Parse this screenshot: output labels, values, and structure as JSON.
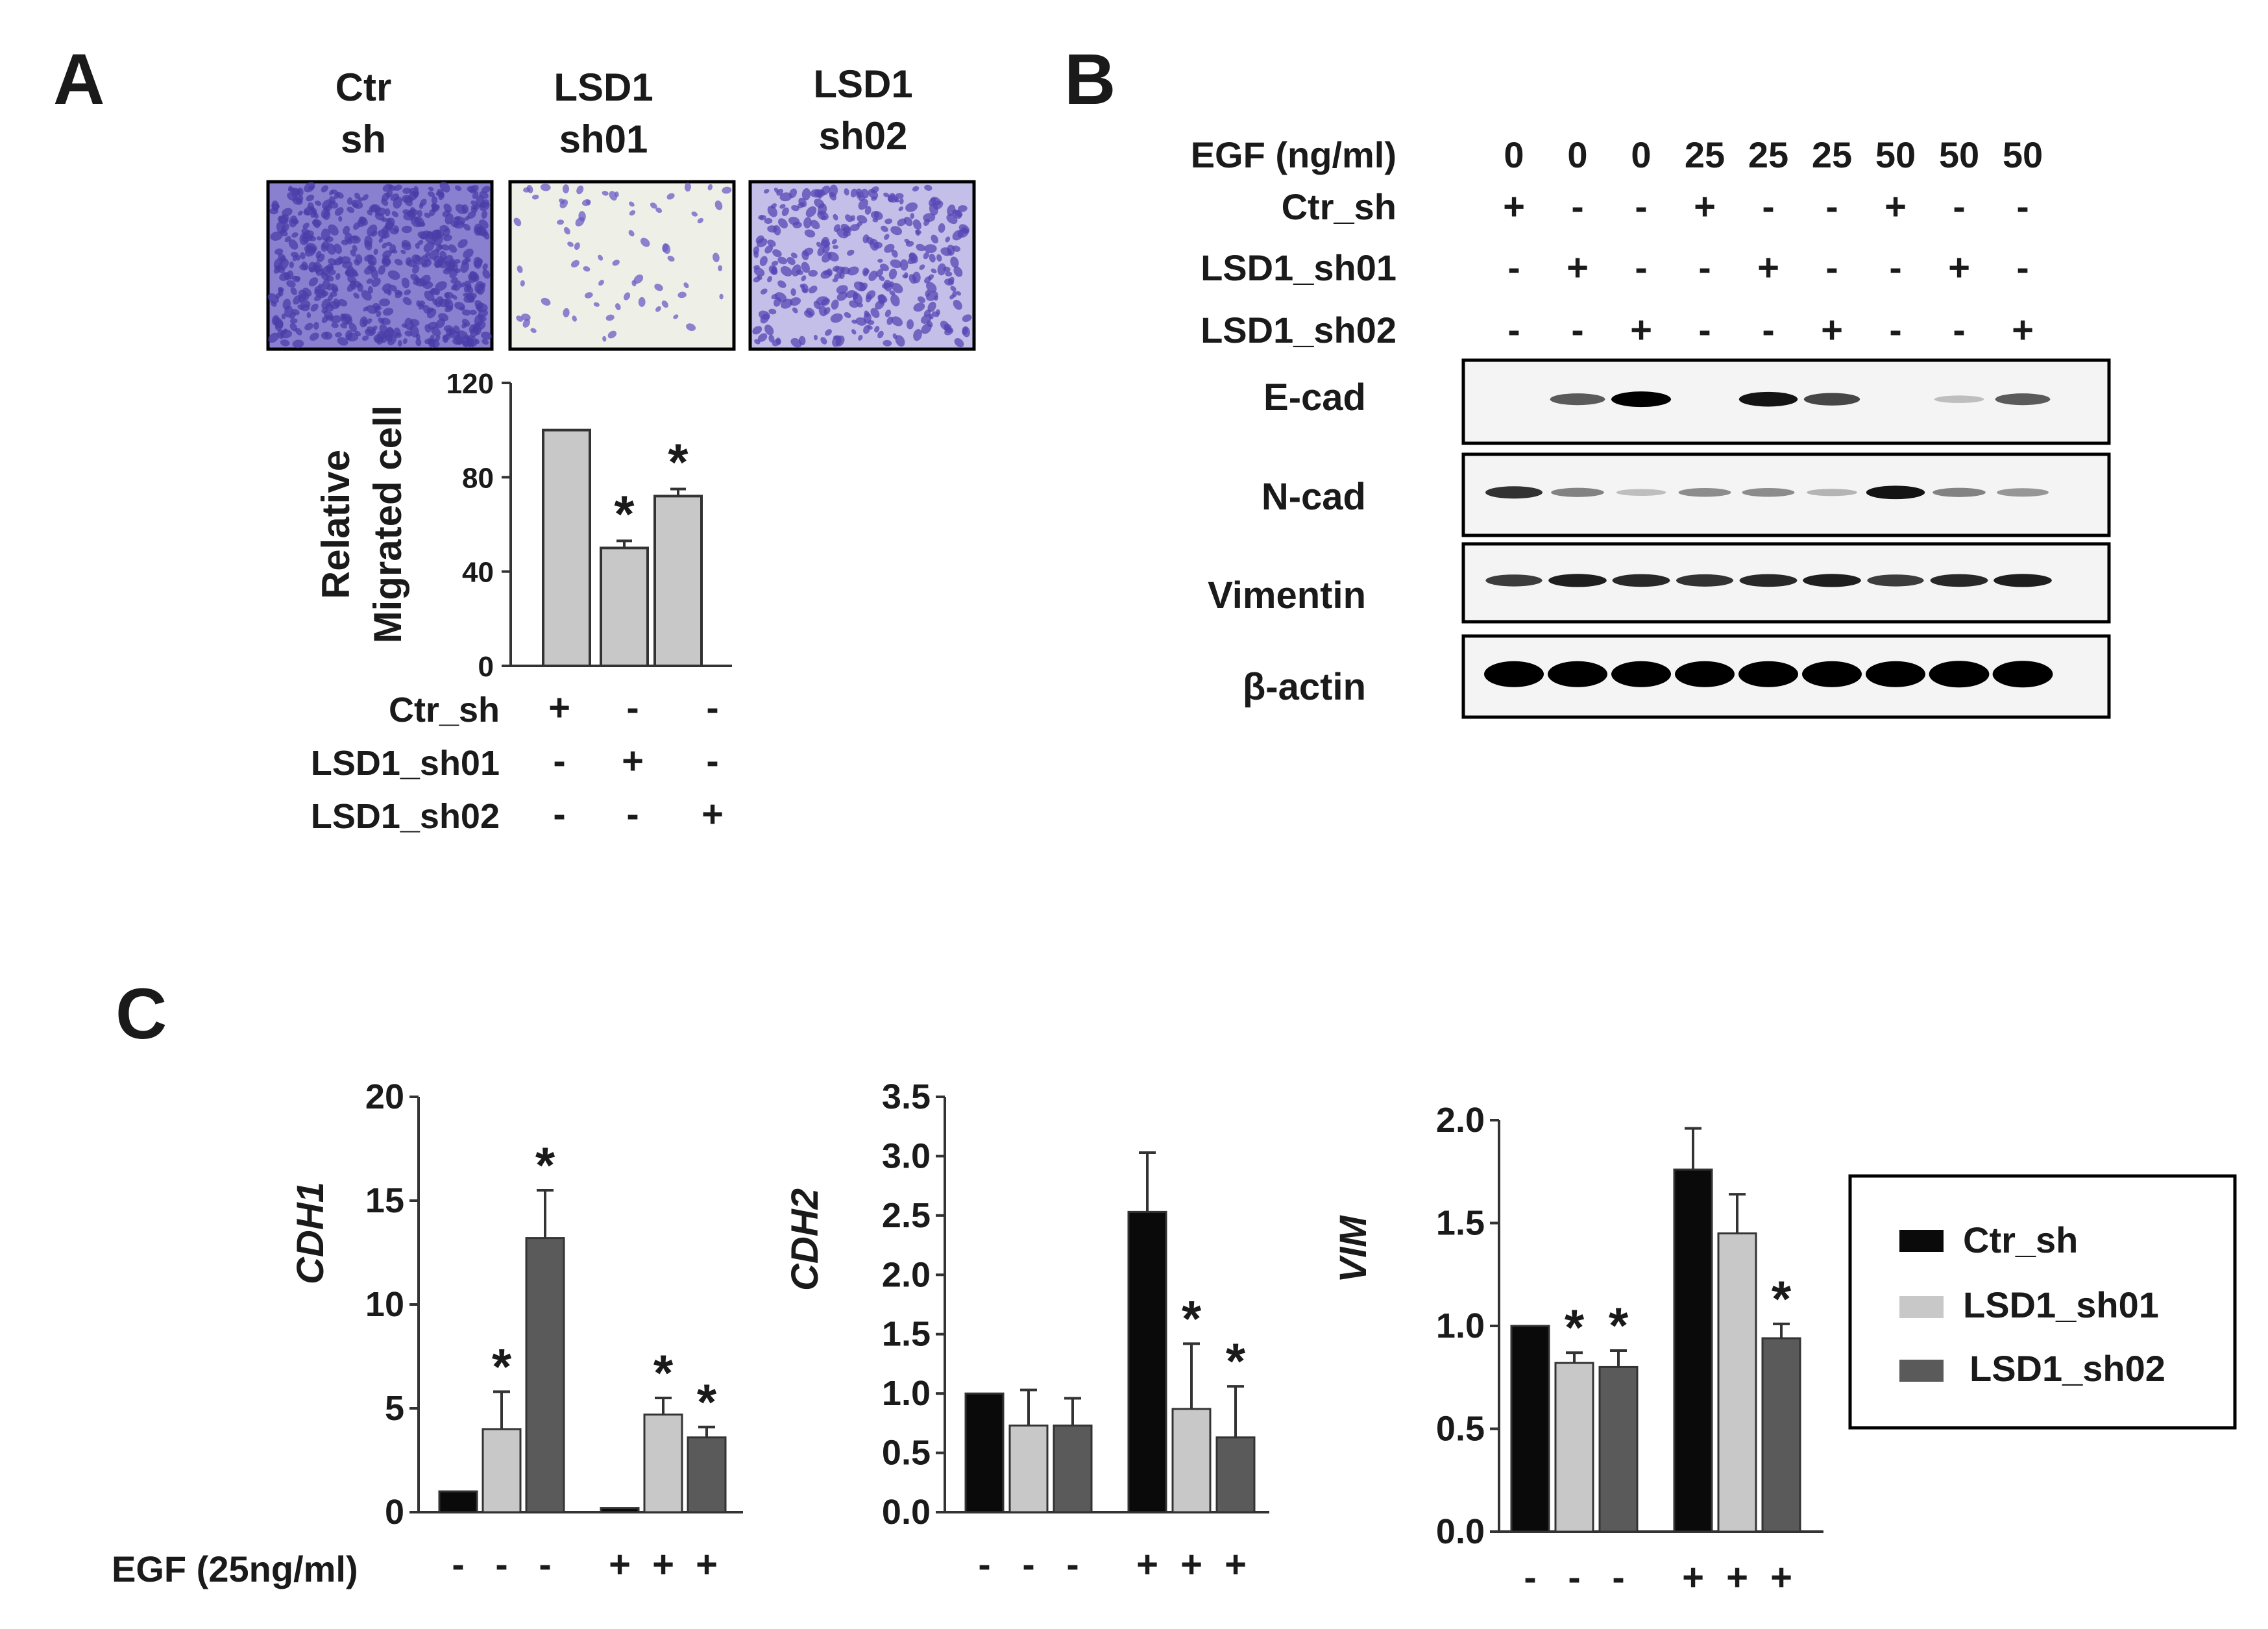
{
  "colors": {
    "black_bar": "#0a0a0a",
    "light_bar": "#c8c8c8",
    "dark_bar": "#5a5a5a",
    "crystal_violet": "#5b4fb8",
    "crystal_bg_light": "#eef0e8",
    "blot_bg": "#f4f4f4"
  },
  "panel_a": {
    "letter": "A",
    "image_titles": [
      {
        "line1": "Ctr",
        "line2": "sh"
      },
      {
        "line1": "LSD1",
        "line2": "sh01"
      },
      {
        "line1": "LSD1",
        "line2": "sh02"
      }
    ],
    "image_densities": [
      "dense",
      "sparse",
      "medium"
    ],
    "condition_rows": [
      {
        "label": "Ctr_sh",
        "marks": [
          "+",
          "-",
          "-"
        ]
      },
      {
        "label": "LSD1_sh01",
        "marks": [
          "-",
          "+",
          "-"
        ]
      },
      {
        "label": "LSD1_sh02",
        "marks": [
          "-",
          "-",
          "+"
        ]
      }
    ]
  },
  "panel_b": {
    "letter": "B",
    "egf_label": "EGF (ng/ml)",
    "egf_values": [
      "0",
      "0",
      "0",
      "25",
      "25",
      "25",
      "50",
      "50",
      "50"
    ],
    "condition_rows": [
      {
        "label": "Ctr_sh",
        "marks": [
          "+",
          "-",
          "-",
          "+",
          "-",
          "-",
          "+",
          "-",
          "-"
        ]
      },
      {
        "label": "LSD1_sh01",
        "marks": [
          "-",
          "+",
          "-",
          "-",
          "+",
          "-",
          "-",
          "+",
          "-"
        ]
      },
      {
        "label": "LSD1_sh02",
        "marks": [
          "-",
          "-",
          "+",
          "-",
          "-",
          "+",
          "-",
          "-",
          "+"
        ]
      }
    ],
    "blots": [
      {
        "label": "E-cad",
        "intensities": [
          0,
          0.55,
          1.0,
          0,
          0.9,
          0.65,
          0,
          0.05,
          0.55
        ]
      },
      {
        "label": "N-cad",
        "intensities": [
          0.75,
          0.35,
          0.05,
          0.3,
          0.3,
          0.1,
          0.9,
          0.35,
          0.25
        ]
      },
      {
        "label": "Vimentin",
        "intensities": [
          0.7,
          0.85,
          0.8,
          0.75,
          0.8,
          0.85,
          0.7,
          0.8,
          0.85
        ]
      },
      {
        "label": "β-actin",
        "intensities": [
          1,
          1,
          1,
          1,
          1,
          1,
          1,
          1.05,
          1.05
        ]
      }
    ]
  },
  "panel_c": {
    "letter": "C",
    "egf_label": "EGF (25ng/ml)",
    "egf_marks": [
      "-",
      "-",
      "-",
      "+",
      "+",
      "+"
    ],
    "legend": [
      "Ctr_sh",
      "LSD1_sh01",
      "LSD1_sh02"
    ]
  },
  "chart_data": [
    {
      "id": "panel-a-migration",
      "type": "bar",
      "ylabel": "Relative Migrated cell",
      "ylabel_lines": [
        "Relative",
        "Migrated cell"
      ],
      "ylim": [
        0,
        120
      ],
      "yticks": [
        0,
        40,
        80,
        120
      ],
      "categories": [
        "Ctr_sh",
        "LSD1_sh01",
        "LSD1_sh02"
      ],
      "values": [
        100,
        50,
        72
      ],
      "errors": [
        0,
        3,
        3
      ],
      "significance": [
        "",
        "*",
        "*"
      ]
    },
    {
      "id": "panel-c-cdh1",
      "type": "bar",
      "ylabel": "CDH1",
      "ylim": [
        0,
        20
      ],
      "yticks": [
        0,
        5,
        10,
        15,
        20
      ],
      "ytick_labels": [
        "0",
        "5",
        "10",
        "15",
        "20"
      ],
      "groups": [
        "EGF -",
        "EGF +"
      ],
      "series": [
        {
          "name": "Ctr_sh",
          "values": [
            1.0,
            0.2
          ],
          "errors": [
            0,
            0
          ],
          "significance": [
            "",
            ""
          ]
        },
        {
          "name": "LSD1_sh01",
          "values": [
            4.0,
            4.7
          ],
          "errors": [
            1.8,
            0.8
          ],
          "significance": [
            "*",
            "*"
          ]
        },
        {
          "name": "LSD1_sh02",
          "values": [
            13.2,
            3.6
          ],
          "errors": [
            2.3,
            0.5
          ],
          "significance": [
            "*",
            "*"
          ]
        }
      ]
    },
    {
      "id": "panel-c-cdh2",
      "type": "bar",
      "ylabel": "CDH2",
      "ylim": [
        0,
        3.5
      ],
      "yticks": [
        0,
        0.5,
        1.0,
        1.5,
        2.0,
        2.5,
        3.0,
        3.5
      ],
      "ytick_labels": [
        "0.0",
        "0.5",
        "1.0",
        "1.5",
        "2.0",
        "2.5",
        "3.0",
        "3.5"
      ],
      "groups": [
        "EGF -",
        "EGF +"
      ],
      "series": [
        {
          "name": "Ctr_sh",
          "values": [
            1.0,
            2.53
          ],
          "errors": [
            0,
            0.5
          ],
          "significance": [
            "",
            ""
          ]
        },
        {
          "name": "LSD1_sh01",
          "values": [
            0.73,
            0.87
          ],
          "errors": [
            0.3,
            0.55
          ],
          "significance": [
            "",
            "*"
          ]
        },
        {
          "name": "LSD1_sh02",
          "values": [
            0.73,
            0.63
          ],
          "errors": [
            0.23,
            0.43
          ],
          "significance": [
            "",
            "*"
          ]
        }
      ]
    },
    {
      "id": "panel-c-vim",
      "type": "bar",
      "ylabel": "VIM",
      "ylim": [
        0,
        2.0
      ],
      "yticks": [
        0,
        0.5,
        1.0,
        1.5,
        2.0
      ],
      "ytick_labels": [
        "0.0",
        "0.5",
        "1.0",
        "1.5",
        "2.0"
      ],
      "groups": [
        "EGF -",
        "EGF +"
      ],
      "series": [
        {
          "name": "Ctr_sh",
          "values": [
            1.0,
            1.76
          ],
          "errors": [
            0,
            0.2
          ],
          "significance": [
            "",
            ""
          ]
        },
        {
          "name": "LSD1_sh01",
          "values": [
            0.82,
            1.45
          ],
          "errors": [
            0.05,
            0.19
          ],
          "significance": [
            "*",
            ""
          ]
        },
        {
          "name": "LSD1_sh02",
          "values": [
            0.8,
            0.94
          ],
          "errors": [
            0.08,
            0.07
          ],
          "significance": [
            "*",
            "*"
          ]
        }
      ]
    }
  ]
}
